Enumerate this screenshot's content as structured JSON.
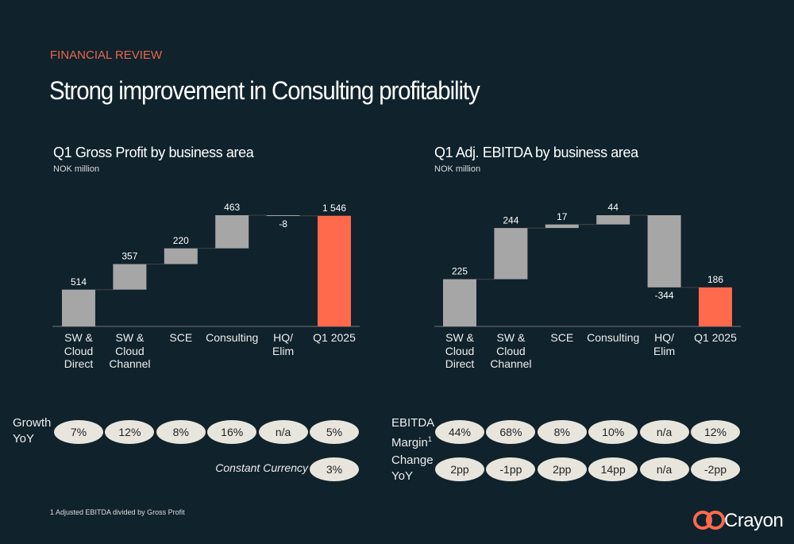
{
  "header": {
    "kicker": "FINANCIAL REVIEW",
    "title": "Strong improvement in Consulting profitability"
  },
  "chart_data": [
    {
      "type": "waterfall",
      "title": "Q1 Gross Profit by business area",
      "subtitle": "NOK million",
      "categories": [
        "SW &\nCloud\nDirect",
        "SW &\nCloud\nChannel",
        "SCE",
        "Consulting",
        "HQ/\nElim",
        "Q1 2025"
      ],
      "values": [
        514,
        357,
        220,
        463,
        -8,
        1546
      ],
      "value_labels": [
        "514",
        "357",
        "220",
        "463",
        "-8",
        "1 546"
      ],
      "color": "#a6a6a6",
      "total_color": "#ff6a4d"
    },
    {
      "type": "waterfall",
      "title": "Q1 Adj. EBITDA by business area",
      "subtitle": "NOK million",
      "categories": [
        "SW &\nCloud\nDirect",
        "SW &\nCloud\nChannel",
        "SCE",
        "Consulting",
        "HQ/\nElim",
        "Q1 2025"
      ],
      "values": [
        225,
        244,
        17,
        44,
        -344,
        186
      ],
      "value_labels": [
        "225",
        "244",
        "17",
        "44",
        "-344",
        "186"
      ],
      "color": "#a6a6a6",
      "total_color": "#ff6a4d"
    }
  ],
  "metrics": [
    {
      "rows": [
        {
          "label": "Growth\nYoY",
          "values": [
            "7%",
            "12%",
            "8%",
            "16%",
            "n/a",
            "5%"
          ]
        }
      ],
      "note": {
        "label": "Constant Currency",
        "value": "3%"
      }
    },
    {
      "rows": [
        {
          "label": "EBITDA\nMargin",
          "footnote_mark": "1",
          "values": [
            "44%",
            "68%",
            "8%",
            "10%",
            "n/a",
            "12%"
          ]
        },
        {
          "label": "Change\nYoY",
          "values": [
            "2pp",
            "-1pp",
            "2pp",
            "14pp",
            "n/a",
            "-2pp"
          ]
        }
      ]
    }
  ],
  "footnote": "1 Adjusted EBITDA divided by Gross Profit",
  "logo": "Crayon"
}
